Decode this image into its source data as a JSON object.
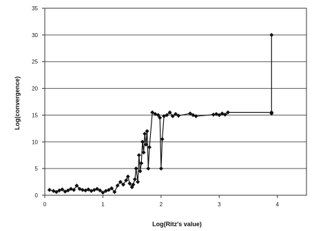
{
  "chart_data": {
    "type": "line",
    "title": "",
    "xlabel": "Log(Ritz's value)",
    "ylabel": "Log(convergence)",
    "xlim": [
      0,
      4.5
    ],
    "ylim": [
      0,
      35
    ],
    "xticks": [
      0,
      1,
      2,
      3,
      4
    ],
    "yticks": [
      0,
      5,
      10,
      15,
      20,
      25,
      30,
      35
    ],
    "grid": "horizontal",
    "legend": "none",
    "marker": "diamond",
    "colors": {
      "line": "#111111",
      "grid": "#555555",
      "frame": "#333333"
    },
    "series": [
      {
        "x": [
          0.08,
          0.15,
          0.2,
          0.25,
          0.3,
          0.35,
          0.4,
          0.45,
          0.5,
          0.55,
          0.6,
          0.65,
          0.7,
          0.75,
          0.8,
          0.85,
          0.9,
          0.95,
          1.0,
          1.05,
          1.1,
          1.15,
          1.2,
          1.25,
          1.3,
          1.35,
          1.4,
          1.43,
          1.46,
          1.5,
          1.52,
          1.55,
          1.57,
          1.6,
          1.62,
          1.64,
          1.66,
          1.68,
          1.7,
          1.72,
          1.74,
          1.76,
          1.78,
          1.8,
          1.85,
          1.9,
          1.95,
          1.98,
          2.0,
          2.02,
          2.05,
          2.1,
          2.15,
          2.2,
          2.25,
          2.3,
          2.5,
          2.55,
          2.6,
          2.9,
          2.95,
          3.0,
          3.05,
          3.1,
          3.15,
          3.9,
          3.9,
          3.9
        ],
        "y": [
          1.0,
          0.8,
          0.6,
          0.9,
          1.1,
          0.7,
          0.9,
          1.2,
          1.0,
          1.8,
          1.2,
          1.0,
          0.9,
          1.1,
          0.8,
          1.0,
          1.2,
          0.9,
          0.5,
          0.8,
          1.0,
          1.3,
          0.6,
          1.8,
          2.5,
          2.0,
          2.8,
          3.5,
          2.2,
          1.5,
          2.0,
          3.0,
          5.0,
          2.5,
          7.5,
          4.5,
          6.0,
          10.0,
          8.0,
          11.5,
          9.5,
          12.0,
          5.0,
          9.0,
          15.5,
          15.2,
          15.0,
          14.5,
          5.0,
          10.5,
          14.8,
          15.0,
          15.5,
          14.8,
          15.2,
          14.9,
          15.3,
          15.0,
          14.8,
          15.1,
          15.2,
          15.0,
          15.3,
          15.1,
          15.5,
          15.5,
          30.0,
          15.3
        ]
      }
    ]
  }
}
